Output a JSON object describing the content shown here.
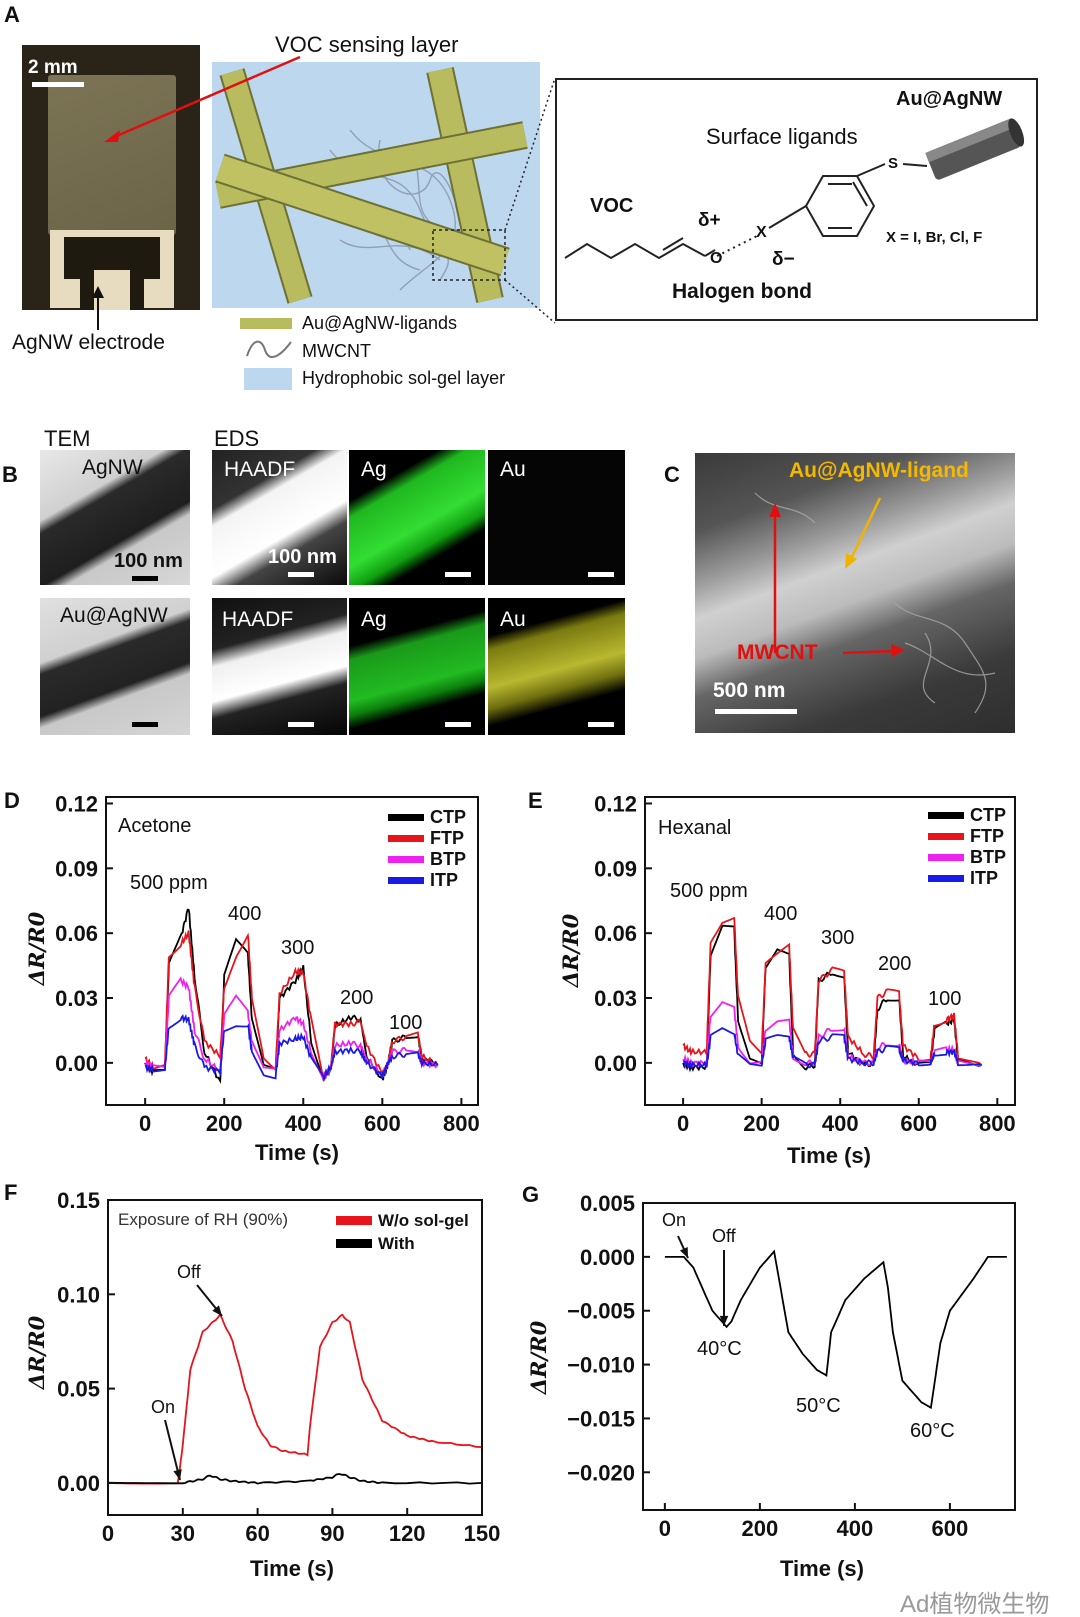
{
  "panels": {
    "A": "A",
    "B": "B",
    "C": "C",
    "D": "D",
    "E": "E",
    "F": "F",
    "G": "G"
  },
  "panel_a": {
    "scale_bar": "2 mm",
    "voc_layer_label": "VOC sensing layer",
    "electrode_label": "AgNW electrode",
    "legend": [
      {
        "label": "Au@AgNW-ligands",
        "icon": "rod-icon",
        "color": "#b9bb5f"
      },
      {
        "label": "MWCNT",
        "icon": "wavy-line-icon",
        "color": "#777777"
      },
      {
        "label": "Hydrophobic sol-gel layer",
        "icon": "blue-square-icon",
        "color": "#bdd7ee"
      }
    ],
    "chem": {
      "au_agnw": "Au@AgNW",
      "surface_ligands": "Surface ligands",
      "voc": "VOC",
      "delta_plus": "δ+",
      "delta_minus": "δ−",
      "x_atom": "X",
      "s_atom": "S",
      "o_atom": "O",
      "x_def": "X = I, Br, Cl, F",
      "halogen_bond": "Halogen bond"
    }
  },
  "panel_b": {
    "tem_header": "TEM",
    "eds_header": "EDS",
    "row1_sample": "AgNW",
    "row2_sample": "Au@AgNW",
    "haadf": "HAADF",
    "ag": "Ag",
    "au": "Au",
    "scale_100nm": "100 nm"
  },
  "panel_c": {
    "ligand_label": "Au@AgNW-ligand",
    "mwcnt_label": "MWCNT",
    "scale_bar": "500 nm"
  },
  "watermark": "Ad植物微生物",
  "chart_data": [
    {
      "id": "D",
      "type": "line",
      "title": "Acetone",
      "xlabel": "Time (s)",
      "ylabel": "ΔR/R0",
      "xlim": [
        -99,
        842
      ],
      "ylim": [
        -0.0195,
        0.123
      ],
      "xticks": [
        0,
        200,
        400,
        600,
        800
      ],
      "xtick_labels": [
        "0",
        "200",
        "400",
        "600",
        "800"
      ],
      "yticks": [
        0,
        0.03,
        0.06,
        0.09,
        0.12
      ],
      "ytick_labels": [
        "0.00",
        "0.03",
        "0.06",
        "0.09",
        "0.12"
      ],
      "legend_position": "top-right",
      "annotations": [
        "500 ppm",
        "400",
        "300",
        "200",
        "100"
      ],
      "x": [
        0,
        20,
        50,
        60,
        90,
        110,
        125,
        150,
        190,
        200,
        230,
        260,
        270,
        300,
        330,
        340,
        380,
        400,
        420,
        450,
        470,
        480,
        520,
        545,
        560,
        600,
        615,
        625,
        660,
        690,
        700,
        740
      ],
      "series": [
        {
          "name": "CTP",
          "color": "#000000",
          "values": [
            0,
            -0.004,
            -0.003,
            0.045,
            0.058,
            0.072,
            0.04,
            0.005,
            -0.009,
            0.04,
            0.056,
            0.05,
            0.02,
            -0.002,
            -0.004,
            0.03,
            0.038,
            0.044,
            0.01,
            -0.006,
            -0.003,
            0.017,
            0.021,
            0.02,
            0.003,
            -0.008,
            0,
            0.01,
            0.012,
            0.013,
            0.002,
            -0.001
          ]
        },
        {
          "name": "FTP",
          "color": "#e8141c",
          "values": [
            0.002,
            -0.002,
            -0.001,
            0.05,
            0.055,
            0.06,
            0.035,
            0.01,
            0.003,
            0.035,
            0.05,
            0.06,
            0.03,
            0.003,
            -0.002,
            0.032,
            0.042,
            0.042,
            0.02,
            -0.008,
            -0.002,
            0.018,
            0.018,
            0.019,
            0.008,
            -0.005,
            0,
            0.01,
            0.012,
            0.013,
            0.003,
            -0.001
          ]
        },
        {
          "name": "BTP",
          "color": "#ee22ee",
          "values": [
            0,
            -0.002,
            -0.002,
            0.03,
            0.038,
            0.035,
            0.015,
            0.002,
            -0.004,
            0.022,
            0.03,
            0.023,
            0.01,
            -0.003,
            -0.004,
            0.015,
            0.021,
            0.018,
            0.005,
            -0.006,
            -0.002,
            0.008,
            0.009,
            0.008,
            0.002,
            -0.006,
            0,
            0.005,
            0.006,
            0.006,
            0,
            -0.001
          ]
        },
        {
          "name": "ITP",
          "color": "#1a1ae6",
          "values": [
            -0.002,
            -0.003,
            -0.003,
            0.017,
            0.021,
            0.02,
            0.008,
            -0.002,
            -0.004,
            0.015,
            0.018,
            0.018,
            0.005,
            -0.005,
            -0.006,
            0.009,
            0.011,
            0.012,
            0.002,
            -0.007,
            -0.002,
            0.005,
            0.006,
            0.005,
            0,
            -0.006,
            0,
            0.003,
            0.004,
            0.004,
            0,
            -0.001
          ]
        }
      ]
    },
    {
      "id": "E",
      "type": "line",
      "title": "Hexanal",
      "xlabel": "Time (s)",
      "ylabel": "ΔR/R0",
      "xlim": [
        -97,
        845
      ],
      "ylim": [
        -0.0195,
        0.123
      ],
      "xticks": [
        0,
        200,
        400,
        600,
        800
      ],
      "xtick_labels": [
        "0",
        "200",
        "400",
        "600",
        "800"
      ],
      "yticks": [
        0,
        0.03,
        0.06,
        0.09,
        0.12
      ],
      "ytick_labels": [
        "0.00",
        "0.03",
        "0.06",
        "0.09",
        "0.12"
      ],
      "legend_position": "top-right",
      "annotations": [
        "500 ppm",
        "400",
        "300",
        "200",
        "100"
      ],
      "x": [
        0,
        20,
        60,
        70,
        100,
        130,
        140,
        170,
        200,
        210,
        240,
        270,
        280,
        310,
        335,
        345,
        380,
        410,
        420,
        460,
        485,
        495,
        520,
        550,
        560,
        600,
        630,
        640,
        670,
        690,
        700,
        760
      ],
      "series": [
        {
          "name": "CTP",
          "color": "#000000",
          "values": [
            0,
            -0.002,
            -0.002,
            0.05,
            0.063,
            0.062,
            0.02,
            0.002,
            -0.001,
            0.045,
            0.053,
            0.05,
            0.005,
            -0.002,
            -0.001,
            0.038,
            0.042,
            0.04,
            0.005,
            -0.001,
            0,
            0.025,
            0.03,
            0.03,
            0.003,
            -0.001,
            0,
            0.015,
            0.018,
            0.02,
            0.001,
            -0.001
          ]
        },
        {
          "name": "FTP",
          "color": "#e8141c",
          "values": [
            0.008,
            0.005,
            0.005,
            0.055,
            0.065,
            0.068,
            0.03,
            0.01,
            0.005,
            0.045,
            0.05,
            0.055,
            0.015,
            0.004,
            0.004,
            0.038,
            0.043,
            0.042,
            0.012,
            0.004,
            0.003,
            0.03,
            0.033,
            0.032,
            0.008,
            0.002,
            0.002,
            0.018,
            0.02,
            0.022,
            0.003,
            -0.001
          ]
        },
        {
          "name": "BTP",
          "color": "#ee22ee",
          "values": [
            0.002,
            0,
            0,
            0.022,
            0.028,
            0.025,
            0.008,
            0,
            0,
            0.016,
            0.02,
            0.02,
            0.003,
            0,
            0,
            0.012,
            0.016,
            0.016,
            0.003,
            0,
            0,
            0.007,
            0.009,
            0.009,
            0.001,
            0,
            0,
            0.005,
            0.006,
            0.006,
            0,
            -0.001
          ]
        },
        {
          "name": "ITP",
          "color": "#1a1ae6",
          "values": [
            0,
            -0.001,
            -0.001,
            0.012,
            0.016,
            0.014,
            0.003,
            -0.001,
            -0.001,
            0.01,
            0.012,
            0.012,
            0.002,
            -0.001,
            -0.001,
            0.01,
            0.012,
            0.012,
            0.002,
            0,
            0,
            0.005,
            0.007,
            0.006,
            0.001,
            0,
            0,
            0.004,
            0.005,
            0.005,
            0,
            -0.001
          ]
        }
      ]
    },
    {
      "id": "F",
      "type": "line",
      "title": "Exposure  of RH  (90%)",
      "xlabel": "Time (s)",
      "ylabel": "ΔR/R0",
      "xlim": [
        0,
        150
      ],
      "ylim": [
        -0.017,
        0.15
      ],
      "xticks": [
        0,
        30,
        60,
        90,
        120,
        150
      ],
      "xtick_labels": [
        "0",
        "30",
        "60",
        "90",
        "120",
        "150"
      ],
      "yticks": [
        0,
        0.05,
        0.1,
        0.15
      ],
      "ytick_labels": [
        "0.00",
        "0.05",
        "0.10",
        "0.15"
      ],
      "legend_position": "top-right",
      "annotations": [
        "On",
        "Off"
      ],
      "series": [
        {
          "name": "W/o sol-gel",
          "color": "#e8141c",
          "x": [
            0,
            28,
            30,
            33,
            38,
            45,
            50,
            55,
            60,
            65,
            70,
            80,
            81,
            85,
            90,
            94,
            97,
            102,
            110,
            120,
            130,
            150
          ],
          "values": [
            0,
            0,
            0.02,
            0.06,
            0.08,
            0.089,
            0.075,
            0.05,
            0.03,
            0.02,
            0.017,
            0.015,
            0.03,
            0.072,
            0.085,
            0.089,
            0.085,
            0.055,
            0.033,
            0.025,
            0.022,
            0.019
          ]
        },
        {
          "name": "With",
          "color": "#000000",
          "x": [
            0,
            30,
            38,
            41,
            45,
            50,
            60,
            80,
            90,
            93,
            97,
            102,
            110,
            150
          ],
          "values": [
            0,
            0,
            0.002,
            0.004,
            0.002,
            0.001,
            0,
            0.001,
            0.003,
            0.005,
            0.003,
            0.001,
            0,
            0
          ]
        }
      ]
    },
    {
      "id": "G",
      "type": "line",
      "xlabel": "Time (s)",
      "ylabel": "ΔR/R0",
      "xlim": [
        -46,
        737
      ],
      "ylim": [
        -0.0235,
        0.005
      ],
      "xticks": [
        0,
        200,
        400,
        600
      ],
      "xtick_labels": [
        "0",
        "200",
        "400",
        "600"
      ],
      "yticks": [
        0.005,
        0,
        -0.005,
        -0.01,
        -0.015,
        -0.02
      ],
      "ytick_labels": [
        "0.005",
        "0.000",
        "−0.005",
        "−0.010",
        "−0.015",
        "−0.020"
      ],
      "annotations": [
        "On",
        "Off",
        "40°C",
        "50°C",
        "60°C"
      ],
      "series": [
        {
          "color": "#000000",
          "x": [
            0,
            40,
            60,
            100,
            130,
            140,
            160,
            200,
            230,
            240,
            260,
            290,
            320,
            340,
            350,
            380,
            420,
            460,
            470,
            480,
            500,
            540,
            560,
            580,
            600,
            650,
            680,
            720
          ],
          "values": [
            0,
            0,
            -0.001,
            -0.005,
            -0.0065,
            -0.006,
            -0.004,
            -0.001,
            0.0005,
            -0.002,
            -0.007,
            -0.009,
            -0.0105,
            -0.011,
            -0.007,
            -0.004,
            -0.002,
            -0.0005,
            -0.003,
            -0.007,
            -0.0115,
            -0.0135,
            -0.014,
            -0.008,
            -0.005,
            -0.002,
            0,
            0
          ]
        }
      ]
    }
  ]
}
